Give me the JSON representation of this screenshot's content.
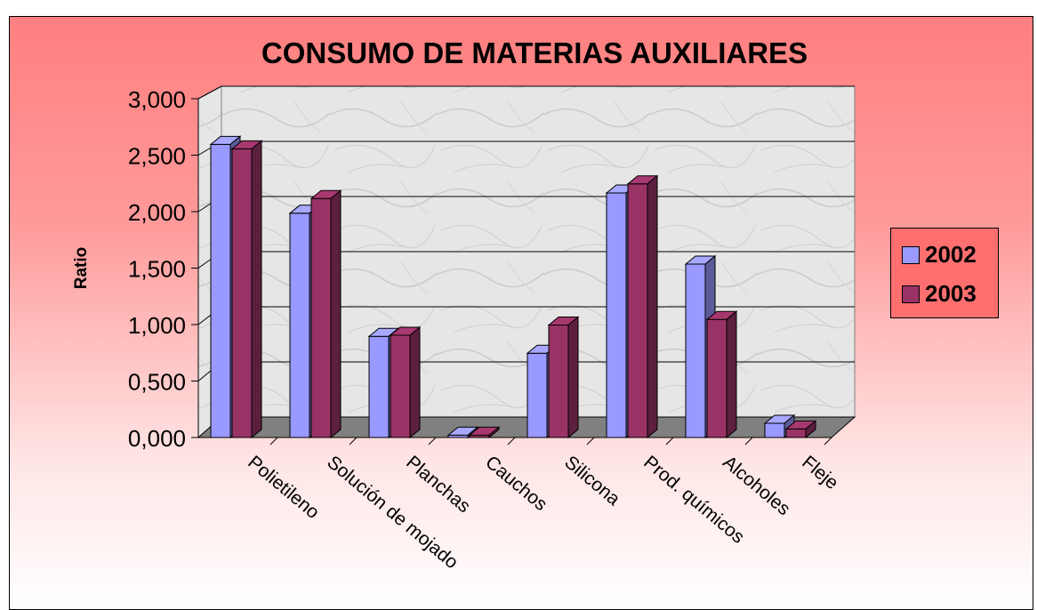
{
  "chart_data": {
    "type": "bar",
    "title": "CONSUMO DE MATERIAS AUXILIARES",
    "xlabel": "",
    "ylabel": "Ratio",
    "ylim": [
      0,
      3
    ],
    "yticks": [
      "0,000",
      "0,500",
      "1,000",
      "1,500",
      "2,000",
      "2,500",
      "3,000"
    ],
    "categories": [
      "Polietileno",
      "Solución de mojado",
      "Planchas",
      "Cauchos",
      "Silicona",
      "Prod. químicos",
      "Alcoholes",
      "Fleje"
    ],
    "series": [
      {
        "name": "2002",
        "color": "#9999ff",
        "values": [
          2.58,
          1.97,
          0.88,
          0.005,
          0.73,
          2.15,
          1.52,
          0.11
        ]
      },
      {
        "name": "2003",
        "color": "#993366",
        "values": [
          2.54,
          2.1,
          0.89,
          0.005,
          0.98,
          2.23,
          1.03,
          0.06
        ]
      }
    ],
    "legend_position": "right",
    "grid": true,
    "style": "3d-clustered-column"
  }
}
